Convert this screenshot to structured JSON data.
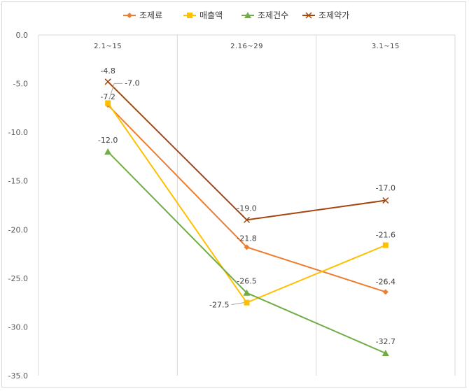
{
  "chart_data": {
    "type": "line",
    "categories": [
      "2.1~15",
      "2.16~29",
      "3.1~15"
    ],
    "ylim": [
      -35,
      0
    ],
    "yticks": [
      "0.0",
      "-5.0",
      "-10.0",
      "-15.0",
      "-20.0",
      "-25.0",
      "-30.0",
      "-35.0"
    ],
    "grid": "vertical category separators",
    "legend_position": "top",
    "series": [
      {
        "name": "조제료",
        "values": [
          -7.2,
          -21.8,
          -26.4
        ],
        "labels": [
          "-7.2",
          "-21.8",
          "-26.4"
        ],
        "color": "#ED7D31",
        "marker": "diamond"
      },
      {
        "name": "매출액",
        "values": [
          -7.0,
          -27.5,
          -21.6
        ],
        "labels": [
          "-7.0",
          "-27.5",
          "-21.6"
        ],
        "color": "#FFC000",
        "marker": "square"
      },
      {
        "name": "조제건수",
        "values": [
          -12.0,
          -26.5,
          -32.7
        ],
        "labels": [
          "-12.0",
          "-26.5",
          "-32.7"
        ],
        "color": "#70AD47",
        "marker": "triangle"
      },
      {
        "name": "조제약가",
        "values": [
          -4.8,
          -19.0,
          -17.0
        ],
        "labels": [
          "-4.8",
          "-19.0",
          "-17.0"
        ],
        "color": "#A5460F",
        "marker": "x"
      }
    ]
  }
}
